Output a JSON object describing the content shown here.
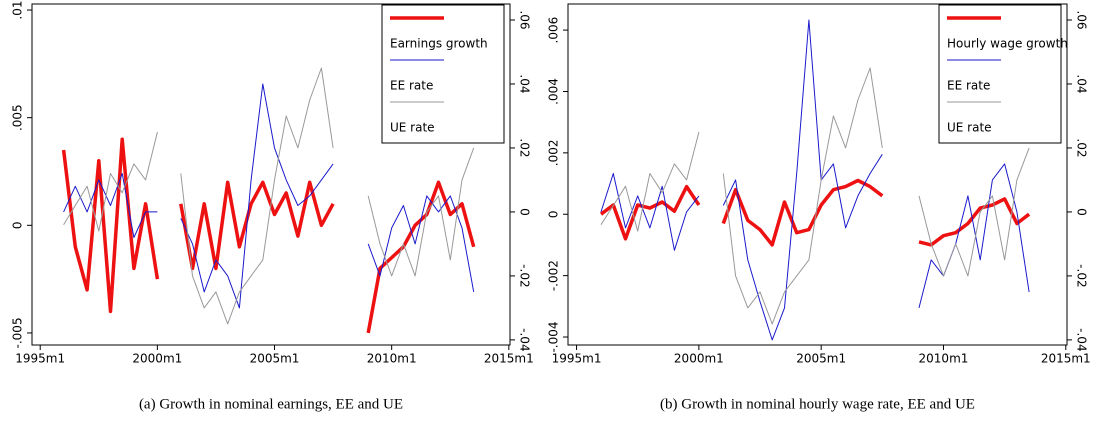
{
  "chart_data": [
    {
      "type": "line",
      "caption": "(a)  Growth in nominal earnings, EE and UE",
      "legend": "upper right",
      "x": [
        1996,
        1996.5,
        1997,
        1997.5,
        1998,
        1998.5,
        1999,
        1999.5,
        2000,
        2000.5,
        2001,
        2001.5,
        2002,
        2002.5,
        2003,
        2003.5,
        2004,
        2004.5,
        2005,
        2005.5,
        2006,
        2006.5,
        2007,
        2007.5,
        2008,
        2008.5,
        2009,
        2009.5,
        2010,
        2010.5,
        2011,
        2011.5,
        2012,
        2012.5,
        2013,
        2013.5
      ],
      "xlim": [
        1994.65,
        2015.05
      ],
      "xticks": [
        {
          "value": 1995,
          "label": "1995m1"
        },
        {
          "value": 2000,
          "label": "2000m1"
        },
        {
          "value": 2005,
          "label": "2005m1"
        },
        {
          "value": 2010,
          "label": "2010m1"
        },
        {
          "value": 2015,
          "label": "2015m1"
        }
      ],
      "ylim": [
        -0.00556,
        0.01028
      ],
      "yticks": [
        {
          "value": -0.005,
          "label": "-.005"
        },
        0,
        {
          "value": 0.005,
          "label": ".005"
        },
        {
          "value": 0.01,
          "label": ".01"
        }
      ],
      "y2lim": [
        -0.0416,
        0.065
      ],
      "y2ticks": [
        {
          "value": -0.04,
          "label": "-.04"
        },
        {
          "value": -0.02,
          "label": "-.02"
        },
        0,
        {
          "value": 0.02,
          "label": ".02"
        },
        {
          "value": 0.04,
          "label": ".04"
        },
        {
          "value": 0.06,
          "label": ".06"
        }
      ],
      "series": [
        {
          "name": "Earnings growth",
          "color": "#ee1111",
          "line_width": 3.5,
          "values": [
            0.0035,
            -0.001,
            -0.003,
            0.003,
            -0.004,
            0.004,
            -0.002,
            0.001,
            -0.0025,
            null,
            0.001,
            -0.002,
            0.001,
            -0.002,
            0.002,
            -0.001,
            0.001,
            0.002,
            0.0005,
            0.0015,
            -0.0005,
            0.002,
            0,
            0.001,
            null,
            null,
            -0.005,
            -0.002,
            -0.0015,
            -0.001,
            0,
            0.0005,
            0.002,
            0.0005,
            0.001,
            -0.001
          ]
        },
        {
          "name": "EE rate",
          "color": "#1a1acc",
          "line_width": 1,
          "axis": "y2",
          "values": [
            0,
            0.008,
            0,
            0.01,
            0.002,
            0.012,
            -0.008,
            0,
            0,
            null,
            -0.002,
            -0.01,
            -0.025,
            -0.015,
            -0.02,
            -0.03,
            0.01,
            0.04,
            0.02,
            0.01,
            0.002,
            0.005,
            0.01,
            0.015,
            null,
            null,
            -0.01,
            -0.02,
            -0.005,
            0.002,
            -0.01,
            0.005,
            0,
            0.005,
            -0.005,
            -0.025
          ]
        },
        {
          "name": "UE rate",
          "color": "#999999",
          "line_width": 1,
          "axis": "y2",
          "values": [
            -0.004,
            0.002,
            0.008,
            -0.006,
            0.012,
            0.006,
            0.015,
            0.01,
            0.025,
            null,
            0.012,
            -0.02,
            -0.03,
            -0.025,
            -0.035,
            -0.025,
            -0.02,
            -0.015,
            0.01,
            0.03,
            0.02,
            0.035,
            0.045,
            0.02,
            null,
            null,
            0.005,
            -0.01,
            -0.02,
            -0.01,
            -0.02,
            0,
            0.005,
            -0.015,
            0.01,
            0.02
          ]
        }
      ]
    },
    {
      "type": "line",
      "caption": "(b)  Growth in nominal hourly wage rate, EE and UE",
      "legend": "upper right",
      "x": [
        1996,
        1996.5,
        1997,
        1997.5,
        1998,
        1998.5,
        1999,
        1999.5,
        2000,
        2000.5,
        2001,
        2001.5,
        2002,
        2002.5,
        2003,
        2003.5,
        2004,
        2004.5,
        2005,
        2005.5,
        2006,
        2006.5,
        2007,
        2007.5,
        2008,
        2008.5,
        2009,
        2009.5,
        2010,
        2010.5,
        2011,
        2011.5,
        2012,
        2012.5,
        2013,
        2013.5
      ],
      "xlim": [
        1994.65,
        2015.05
      ],
      "xticks": [
        {
          "value": 1995,
          "label": "1995m1"
        },
        {
          "value": 2000,
          "label": "2000m1"
        },
        {
          "value": 2005,
          "label": "2005m1"
        },
        {
          "value": 2010,
          "label": "2010m1"
        },
        {
          "value": 2015,
          "label": "2015m1"
        }
      ],
      "ylim": [
        -0.00426,
        0.00685
      ],
      "yticks": [
        {
          "value": -0.004,
          "label": "-.004"
        },
        {
          "value": -0.002,
          "label": "-.002"
        },
        0,
        {
          "value": 0.002,
          "label": ".002"
        },
        {
          "value": 0.004,
          "label": ".004"
        },
        {
          "value": 0.006,
          "label": ".006"
        }
      ],
      "y2lim": [
        -0.0416,
        0.065
      ],
      "y2ticks": [
        {
          "value": -0.04,
          "label": "-.04"
        },
        {
          "value": -0.02,
          "label": "-.02"
        },
        0,
        {
          "value": 0.02,
          "label": ".02"
        },
        {
          "value": 0.04,
          "label": ".04"
        },
        {
          "value": 0.06,
          "label": ".06"
        }
      ],
      "series": [
        {
          "name": "Hourly wage growth",
          "color": "#ee1111",
          "line_width": 3.5,
          "values": [
            0,
            0.0003,
            -0.0008,
            0.0003,
            0.0002,
            0.0004,
            0.0001,
            0.0009,
            0.0003,
            null,
            -0.0003,
            0.0008,
            -0.0002,
            -0.0005,
            -0.001,
            0.0004,
            -0.0006,
            -0.0005,
            0.0003,
            0.0008,
            0.0009,
            0.0011,
            0.0009,
            0.0006,
            null,
            null,
            -0.0009,
            -0.001,
            -0.0007,
            -0.0006,
            -0.0003,
            0.0002,
            0.0003,
            0.0005,
            -0.0003,
            0
          ]
        },
        {
          "name": "EE rate",
          "color": "#1a1acc",
          "line_width": 1,
          "axis": "y2",
          "values": [
            0,
            0.012,
            -0.005,
            0.005,
            -0.005,
            0.008,
            -0.012,
            0,
            0.005,
            null,
            0.002,
            0.01,
            -0.015,
            -0.028,
            -0.04,
            -0.03,
            0.012,
            0.06,
            0.01,
            0.015,
            -0.005,
            0.005,
            0.012,
            0.018,
            null,
            null,
            -0.03,
            -0.015,
            -0.02,
            -0.01,
            0.005,
            -0.015,
            0.01,
            0.015,
            0,
            -0.025
          ]
        },
        {
          "name": "UE rate",
          "color": "#999999",
          "line_width": 1,
          "axis": "y2",
          "values": [
            -0.004,
            0.002,
            0.008,
            -0.006,
            0.012,
            0.006,
            0.015,
            0.01,
            0.025,
            null,
            0.012,
            -0.02,
            -0.03,
            -0.025,
            -0.035,
            -0.025,
            -0.02,
            -0.015,
            0.01,
            0.03,
            0.02,
            0.035,
            0.045,
            0.02,
            null,
            null,
            0.005,
            -0.01,
            -0.02,
            -0.01,
            -0.02,
            0,
            0.005,
            -0.015,
            0.01,
            0.02
          ]
        }
      ]
    }
  ]
}
